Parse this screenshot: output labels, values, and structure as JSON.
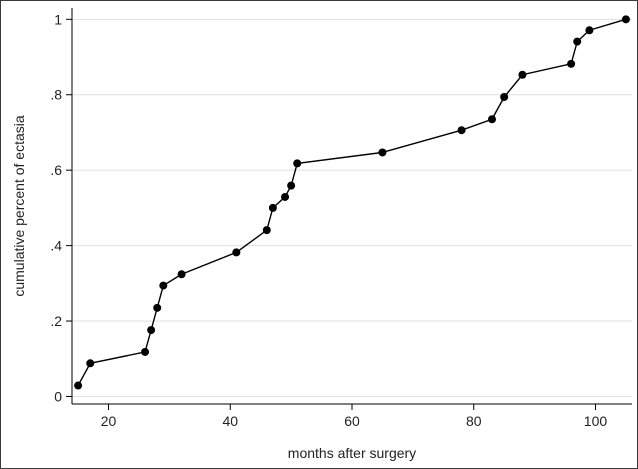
{
  "chart_data": {
    "type": "line",
    "title": "",
    "xlabel": "months after surgery",
    "ylabel": "cumulative percent of ectasia",
    "xlim": [
      14,
      106
    ],
    "ylim": [
      -0.02,
      1.03
    ],
    "x_ticks": [
      20,
      40,
      60,
      80,
      100
    ],
    "x_tick_labels": [
      "20",
      "40",
      "60",
      "80",
      "100"
    ],
    "y_ticks": [
      0,
      0.2,
      0.4,
      0.6,
      0.8,
      1
    ],
    "y_tick_labels": [
      "0",
      ".2",
      ".4",
      ".6",
      ".8",
      "1"
    ],
    "grid": "horizontal",
    "legend": "none",
    "colors": {
      "line": "#000000",
      "marker": "#000000",
      "grid": "#e0e0e0",
      "axis": "#000000"
    },
    "series": [
      {
        "x": [
          15,
          17,
          26,
          27,
          28,
          29,
          32,
          41,
          46,
          47,
          49,
          50,
          51,
          65,
          78,
          83,
          85,
          88,
          96,
          97,
          99,
          105
        ],
        "y": [
          0.029,
          0.088,
          0.118,
          0.176,
          0.235,
          0.294,
          0.324,
          0.382,
          0.441,
          0.5,
          0.529,
          0.559,
          0.618,
          0.647,
          0.706,
          0.735,
          0.794,
          0.853,
          0.882,
          0.941,
          0.971,
          1.0
        ]
      }
    ]
  }
}
